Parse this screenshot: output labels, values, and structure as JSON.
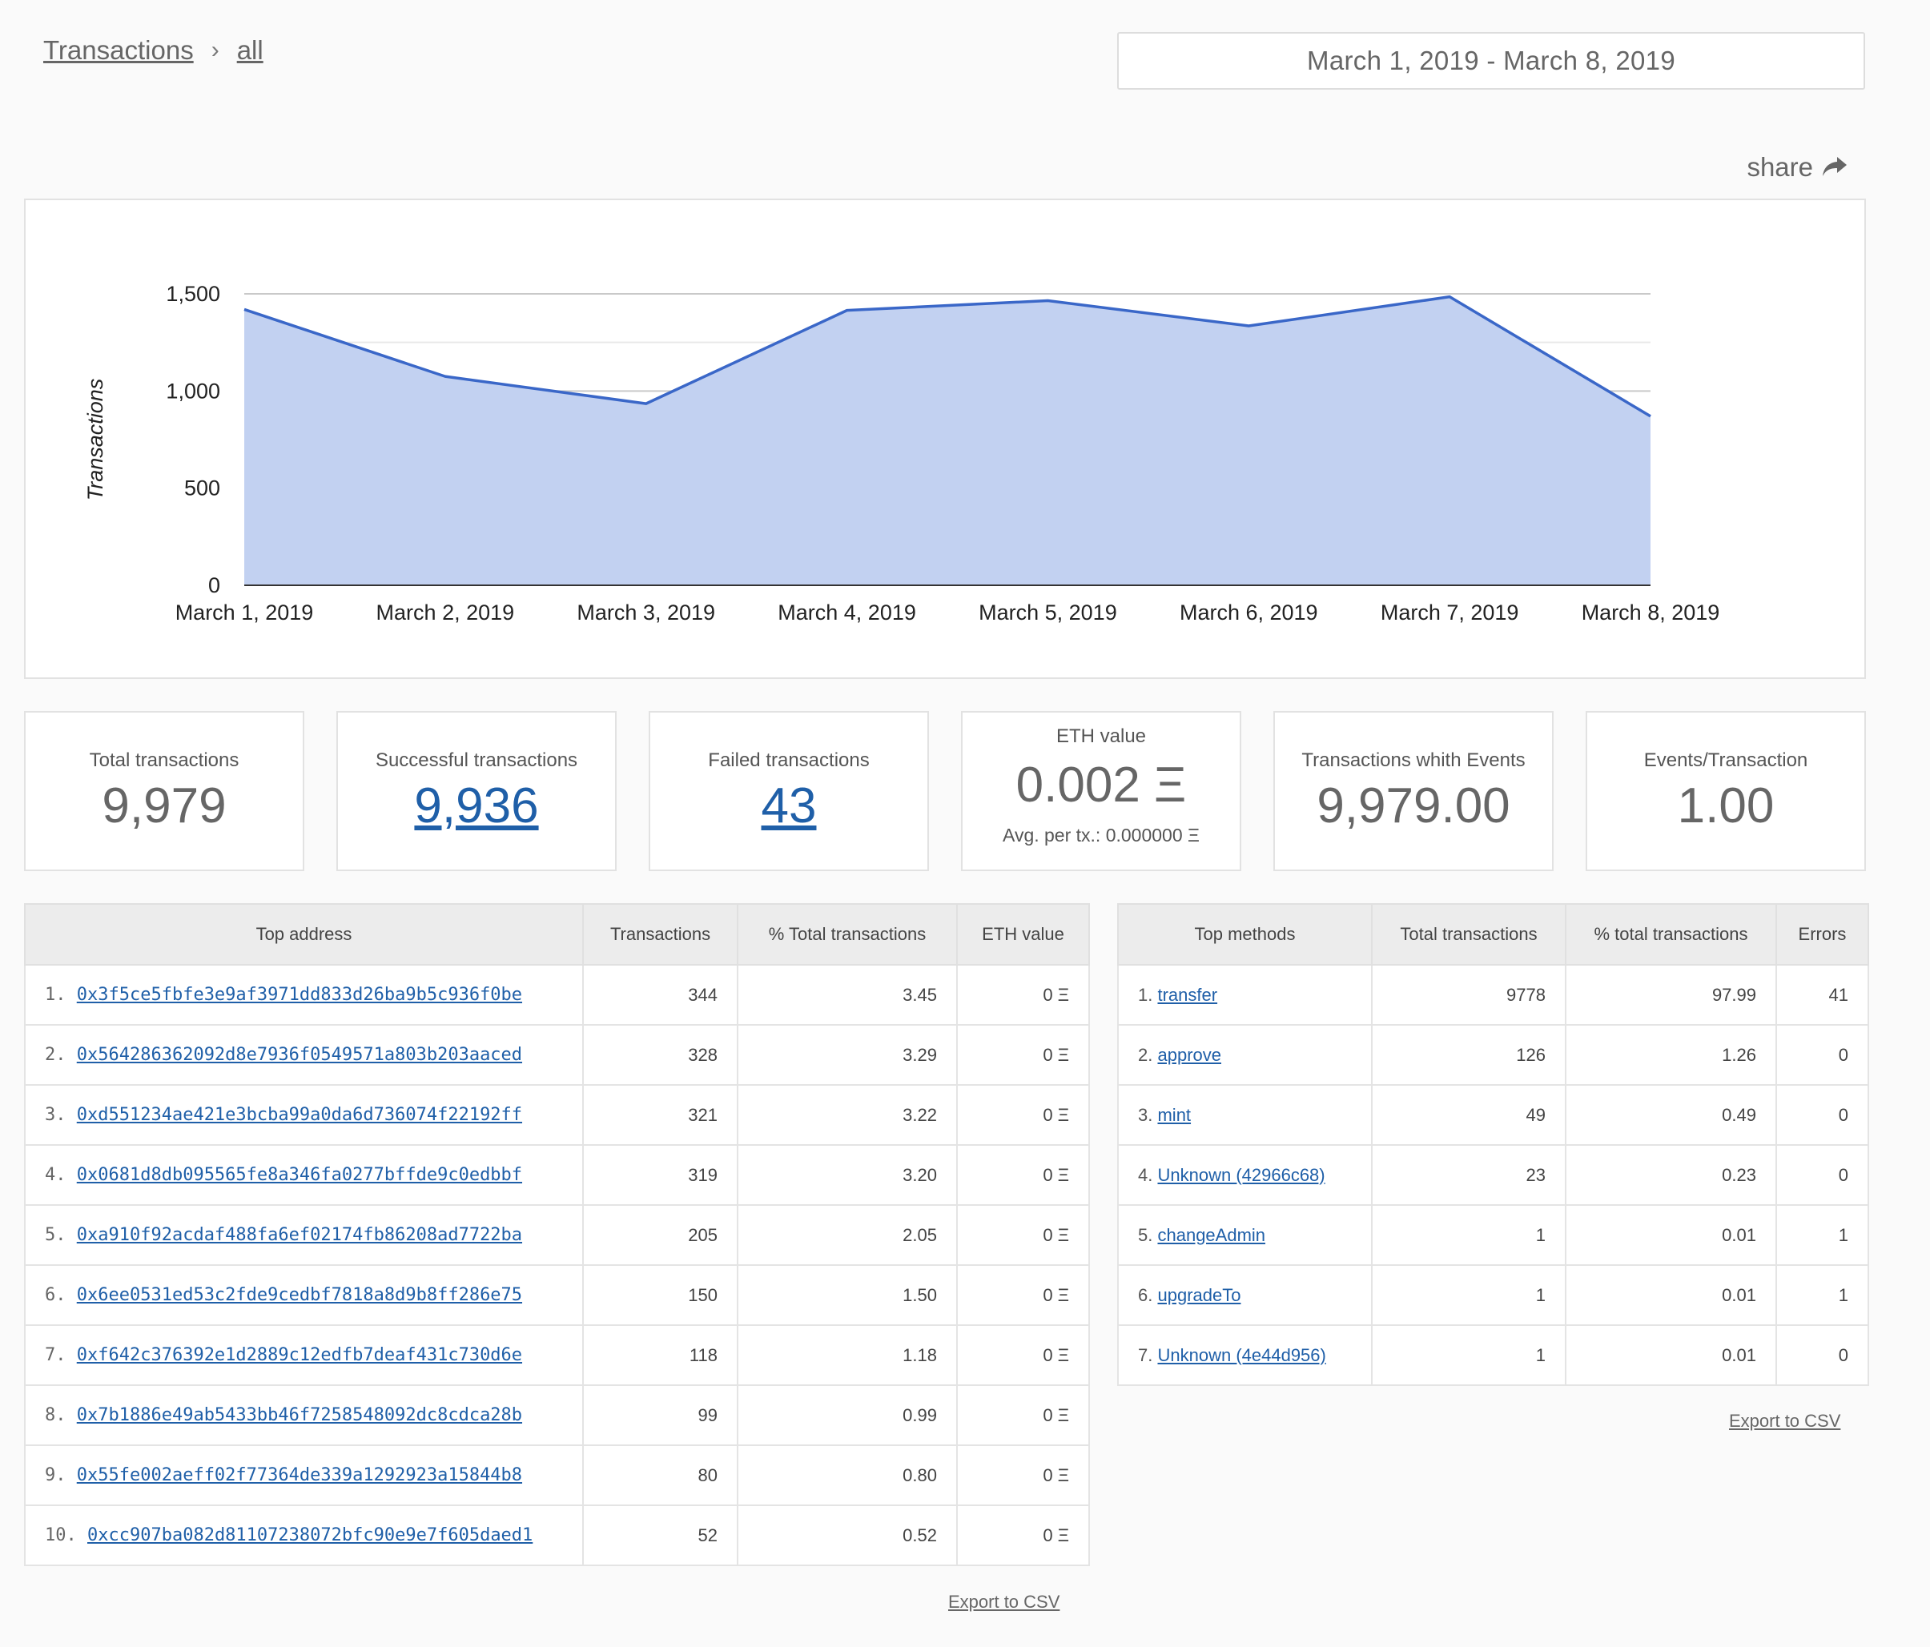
{
  "breadcrumb": {
    "root": "Transactions",
    "current": "all"
  },
  "date_range": "March 1, 2019 - March 8, 2019",
  "share": {
    "label": "share",
    "icon": "share-arrow-icon"
  },
  "chart_data": {
    "type": "area",
    "categories": [
      "March 1, 2019",
      "March 2, 2019",
      "March 3, 2019",
      "March 4, 2019",
      "March 5, 2019",
      "March 6, 2019",
      "March 7, 2019",
      "March 8, 2019"
    ],
    "series": [
      {
        "values": [
          1420,
          1075,
          935,
          1415,
          1465,
          1335,
          1485,
          870
        ]
      }
    ],
    "ylabel": "Transactions",
    "yticks": [
      "0",
      "500",
      "1,000",
      "1,500"
    ],
    "ylim": [
      0,
      1500
    ],
    "grid": true,
    "colors": {
      "line": "#3a67c8",
      "fill": "#c2d1f1"
    }
  },
  "stats": {
    "total": {
      "label": "Total transactions",
      "value": "9,979"
    },
    "successful": {
      "label": "Successful transactions",
      "value": "9,936"
    },
    "failed": {
      "label": "Failed transactions",
      "value": "43"
    },
    "eth": {
      "label": "ETH value",
      "value": "0.002 Ξ",
      "sub": "Avg. per tx.: 0.000000 Ξ"
    },
    "with_events": {
      "label": "Transactions whith Events",
      "value": "9,979.00"
    },
    "events_per_tx": {
      "label": "Events/Transaction",
      "value": "1.00"
    }
  },
  "address_table": {
    "headers": [
      "Top address",
      "Transactions",
      "% Total transactions",
      "ETH value"
    ],
    "rows": [
      {
        "rank": "1.",
        "address": "0x3f5ce5fbfe3e9af3971dd833d26ba9b5c936f0be",
        "tx": "344",
        "pct": "3.45",
        "eth": "0 Ξ"
      },
      {
        "rank": "2.",
        "address": "0x564286362092d8e7936f0549571a803b203aaced",
        "tx": "328",
        "pct": "3.29",
        "eth": "0 Ξ"
      },
      {
        "rank": "3.",
        "address": "0xd551234ae421e3bcba99a0da6d736074f22192ff",
        "tx": "321",
        "pct": "3.22",
        "eth": "0 Ξ"
      },
      {
        "rank": "4.",
        "address": "0x0681d8db095565fe8a346fa0277bffde9c0edbbf",
        "tx": "319",
        "pct": "3.20",
        "eth": "0 Ξ"
      },
      {
        "rank": "5.",
        "address": "0xa910f92acdaf488fa6ef02174fb86208ad7722ba",
        "tx": "205",
        "pct": "2.05",
        "eth": "0 Ξ"
      },
      {
        "rank": "6.",
        "address": "0x6ee0531ed53c2fde9cedbf7818a8d9b8ff286e75",
        "tx": "150",
        "pct": "1.50",
        "eth": "0 Ξ"
      },
      {
        "rank": "7.",
        "address": "0xf642c376392e1d2889c12edfb7deaf431c730d6e",
        "tx": "118",
        "pct": "1.18",
        "eth": "0 Ξ"
      },
      {
        "rank": "8.",
        "address": "0x7b1886e49ab5433bb46f7258548092dc8cdca28b",
        "tx": "99",
        "pct": "0.99",
        "eth": "0 Ξ"
      },
      {
        "rank": "9.",
        "address": "0x55fe002aeff02f77364de339a1292923a15844b8",
        "tx": "80",
        "pct": "0.80",
        "eth": "0 Ξ"
      },
      {
        "rank": "10.",
        "address": "0xcc907ba082d81107238072bfc90e9e7f605daed1",
        "tx": "52",
        "pct": "0.52",
        "eth": "0 Ξ"
      }
    ],
    "export_label": "Export to CSV"
  },
  "methods_table": {
    "headers": [
      "Top methods",
      "Total transactions",
      "% total transactions",
      "Errors"
    ],
    "rows": [
      {
        "rank": "1.",
        "method": "transfer",
        "tx": "9778",
        "pct": "97.99",
        "errors": "41"
      },
      {
        "rank": "2.",
        "method": "approve",
        "tx": "126",
        "pct": "1.26",
        "errors": "0"
      },
      {
        "rank": "3.",
        "method": "mint",
        "tx": "49",
        "pct": "0.49",
        "errors": "0"
      },
      {
        "rank": "4.",
        "method": "Unknown (42966c68)",
        "tx": "23",
        "pct": "0.23",
        "errors": "0"
      },
      {
        "rank": "5.",
        "method": "changeAdmin",
        "tx": "1",
        "pct": "0.01",
        "errors": "1"
      },
      {
        "rank": "6.",
        "method": "upgradeTo",
        "tx": "1",
        "pct": "0.01",
        "errors": "1"
      },
      {
        "rank": "7.",
        "method": "Unknown (4e44d956)",
        "tx": "1",
        "pct": "0.01",
        "errors": "0"
      }
    ],
    "export_label": "Export to CSV"
  }
}
